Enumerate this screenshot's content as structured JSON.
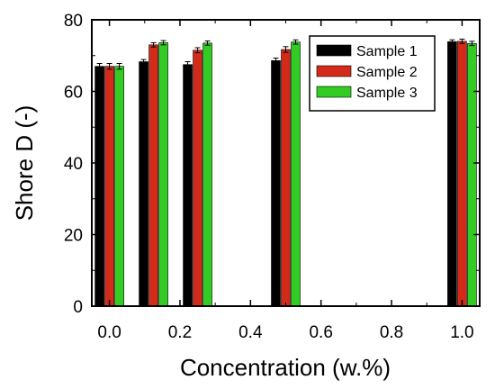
{
  "chart_data": {
    "type": "bar",
    "xlabel": "Concentration (w.%)",
    "ylabel": "Shore D (-)",
    "xlim": [
      -0.05,
      1.05
    ],
    "ylim": [
      0,
      80
    ],
    "x_ticks": [
      0.0,
      0.2,
      0.4,
      0.6,
      0.8,
      1.0
    ],
    "x_tick_labels": [
      "0.0",
      "0.2",
      "0.4",
      "0.6",
      "0.8",
      "1.0"
    ],
    "y_ticks": [
      0,
      20,
      40,
      60,
      80
    ],
    "y_tick_labels": [
      "0",
      "20",
      "40",
      "60",
      "80"
    ],
    "x": [
      0.0,
      0.125,
      0.25,
      0.5,
      1.0
    ],
    "series": [
      {
        "name": "Sample 1",
        "color": "#000000",
        "values": [
          67.0,
          68.3,
          67.5,
          68.6,
          73.9
        ],
        "errors": [
          0.8,
          0.6,
          0.8,
          0.7,
          0.5
        ]
      },
      {
        "name": "Sample 2",
        "color": "#d42a1a",
        "values": [
          67.0,
          73.0,
          71.5,
          71.7,
          74.0
        ],
        "errors": [
          0.8,
          0.6,
          0.7,
          0.8,
          0.6
        ]
      },
      {
        "name": "Sample 3",
        "color": "#33cc22",
        "values": [
          67.0,
          73.6,
          73.5,
          73.8,
          73.4
        ],
        "errors": [
          0.8,
          0.6,
          0.6,
          0.6,
          0.6
        ]
      }
    ],
    "legend": {
      "position": "top-right"
    },
    "grid": false
  }
}
